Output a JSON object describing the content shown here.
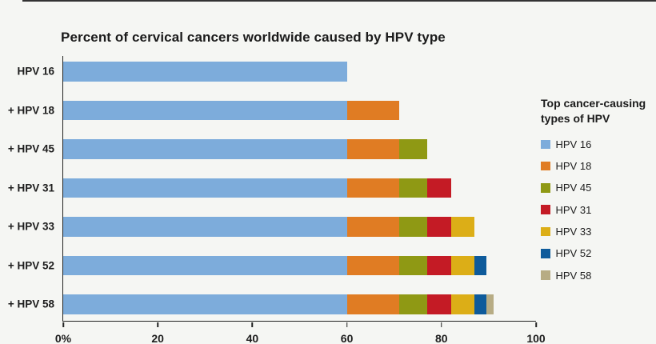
{
  "page": {
    "background_color": "#f5f6f3",
    "top_line_color": "#333333",
    "text_color": "#1d1d1d"
  },
  "chart_data": {
    "type": "bar",
    "orientation": "horizontal",
    "stacked": true,
    "title": "Percent of cervical cancers worldwide caused by HPV type",
    "categories": [
      "HPV 16",
      "+ HPV 18",
      "+ HPV 45",
      "+ HPV 31",
      "+ HPV 33",
      "+ HPV 52",
      "+ HPV 58"
    ],
    "series": [
      {
        "name": "HPV 16",
        "color": "#7dacdb",
        "values": [
          60,
          60,
          60,
          60,
          60,
          60,
          60
        ]
      },
      {
        "name": "HPV 18",
        "color": "#e07c23",
        "values": [
          0,
          11,
          11,
          11,
          11,
          11,
          11
        ]
      },
      {
        "name": "HPV 45",
        "color": "#8f9914",
        "values": [
          0,
          0,
          6,
          6,
          6,
          6,
          6
        ]
      },
      {
        "name": "HPV 31",
        "color": "#c41b25",
        "values": [
          0,
          0,
          0,
          5,
          5,
          5,
          5
        ]
      },
      {
        "name": "HPV 33",
        "color": "#dcae17",
        "values": [
          0,
          0,
          0,
          0,
          5,
          5,
          5
        ]
      },
      {
        "name": "HPV 52",
        "color": "#0e5b9b",
        "values": [
          0,
          0,
          0,
          0,
          0,
          2.5,
          2.5
        ]
      },
      {
        "name": "HPV 58",
        "color": "#b7ac84",
        "values": [
          0,
          0,
          0,
          0,
          0,
          0,
          1.5
        ]
      }
    ],
    "cumulative_totals": [
      60,
      71,
      77,
      82,
      87,
      89.5,
      91
    ],
    "xlim": [
      0,
      100
    ],
    "x_ticks": [
      {
        "value": 0,
        "label": "0%"
      },
      {
        "value": 20,
        "label": "20"
      },
      {
        "value": 40,
        "label": "40"
      },
      {
        "value": 60,
        "label": "60"
      },
      {
        "value": 80,
        "label": "80"
      },
      {
        "value": 100,
        "label": "100"
      }
    ],
    "grid": false,
    "legend_position": "right",
    "axis_color": "#222222"
  },
  "legend": {
    "title": "Top cancer-causing types of HPV",
    "items": [
      {
        "label": "HPV 16",
        "color": "#7dacdb"
      },
      {
        "label": "HPV 18",
        "color": "#e07c23"
      },
      {
        "label": "HPV 45",
        "color": "#8f9914"
      },
      {
        "label": "HPV 31",
        "color": "#c41b25"
      },
      {
        "label": "HPV 33",
        "color": "#dcae17"
      },
      {
        "label": "HPV 52",
        "color": "#0e5b9b"
      },
      {
        "label": "HPV 58",
        "color": "#b7ac84"
      }
    ]
  }
}
